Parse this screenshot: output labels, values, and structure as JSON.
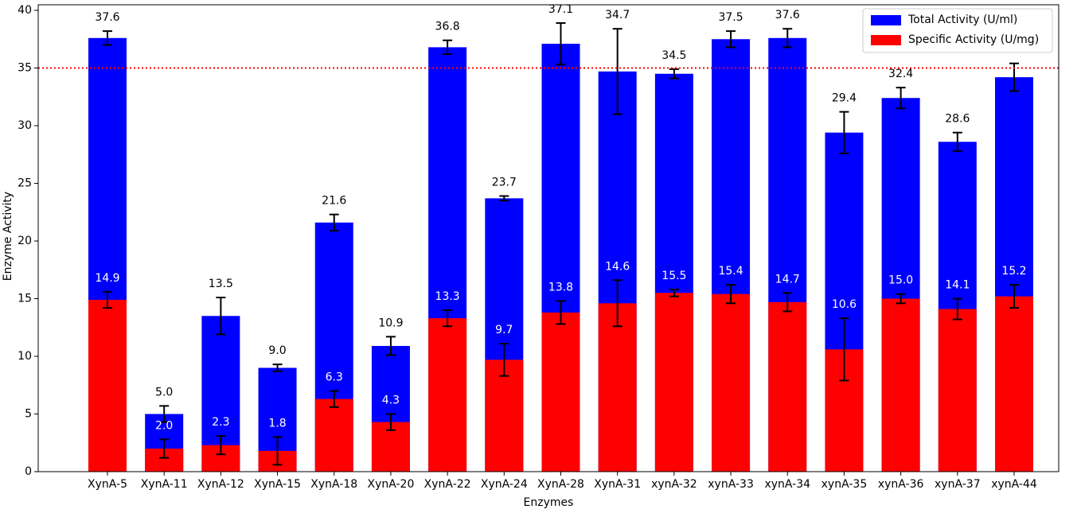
{
  "chart_data": {
    "type": "bar",
    "overlay": true,
    "x_label": "Enzymes",
    "y_label": "Enzyme Activity",
    "categories": [
      "XynA-5",
      "XynA-11",
      "XynA-12",
      "XynA-15",
      "XynA-18",
      "XynA-20",
      "XynA-22",
      "XynA-24",
      "XynA-28",
      "XynA-31",
      "xynA-32",
      "xynA-33",
      "xynA-34",
      "xynA-35",
      "xynA-36",
      "xynA-37",
      "xynA-44"
    ],
    "series": [
      {
        "name": "Total Activity (U/ml)",
        "color": "#0000ff",
        "label_color": "#000000",
        "values": [
          37.6,
          5,
          13.5,
          9,
          21.6,
          10.9,
          36.8,
          23.7,
          37.1,
          34.7,
          34.5,
          37.5,
          37.6,
          29.4,
          32.4,
          28.6,
          34.2
        ],
        "value_labels": [
          "37.6",
          "5.0",
          "13.5",
          "9.0",
          "21.6",
          "10.9",
          "36.8",
          "23.7",
          "37.1",
          "34.7",
          "34.5",
          "37.5",
          "37.6",
          "29.4",
          "32.4",
          "28.6",
          "34.2"
        ],
        "errors": [
          0.6,
          0.7,
          1.6,
          0.3,
          0.7,
          0.8,
          0.6,
          0.2,
          1.8,
          3.7,
          0.4,
          0.7,
          0.8,
          1.8,
          0.9,
          0.8,
          1.2
        ]
      },
      {
        "name": "Specific Activity (U/mg)",
        "color": "#ff0000",
        "label_color": "#ffffff",
        "values": [
          14.9,
          2,
          2.3,
          1.8,
          6.3,
          4.3,
          13.3,
          9.7,
          13.8,
          14.6,
          15.5,
          15.4,
          14.7,
          10.6,
          15,
          14.1,
          15.2
        ],
        "value_labels": [
          "14.9",
          "2.0",
          "2.3",
          "1.8",
          "6.3",
          "4.3",
          "13.3",
          "9.7",
          "13.8",
          "14.6",
          "15.5",
          "15.4",
          "14.7",
          "10.6",
          "15.0",
          "14.1",
          "15.2"
        ],
        "errors": [
          0.7,
          0.8,
          0.8,
          1.2,
          0.7,
          0.7,
          0.7,
          1.4,
          1.0,
          2.0,
          0.3,
          0.8,
          0.8,
          2.7,
          0.4,
          0.9,
          1.0
        ]
      }
    ],
    "threshold": 35,
    "threshold_color": "#ff0000",
    "ylim": [
      0,
      40
    ],
    "yticks": [
      0,
      5,
      10,
      15,
      20,
      25,
      30,
      35,
      40
    ],
    "legend": "upper right"
  }
}
